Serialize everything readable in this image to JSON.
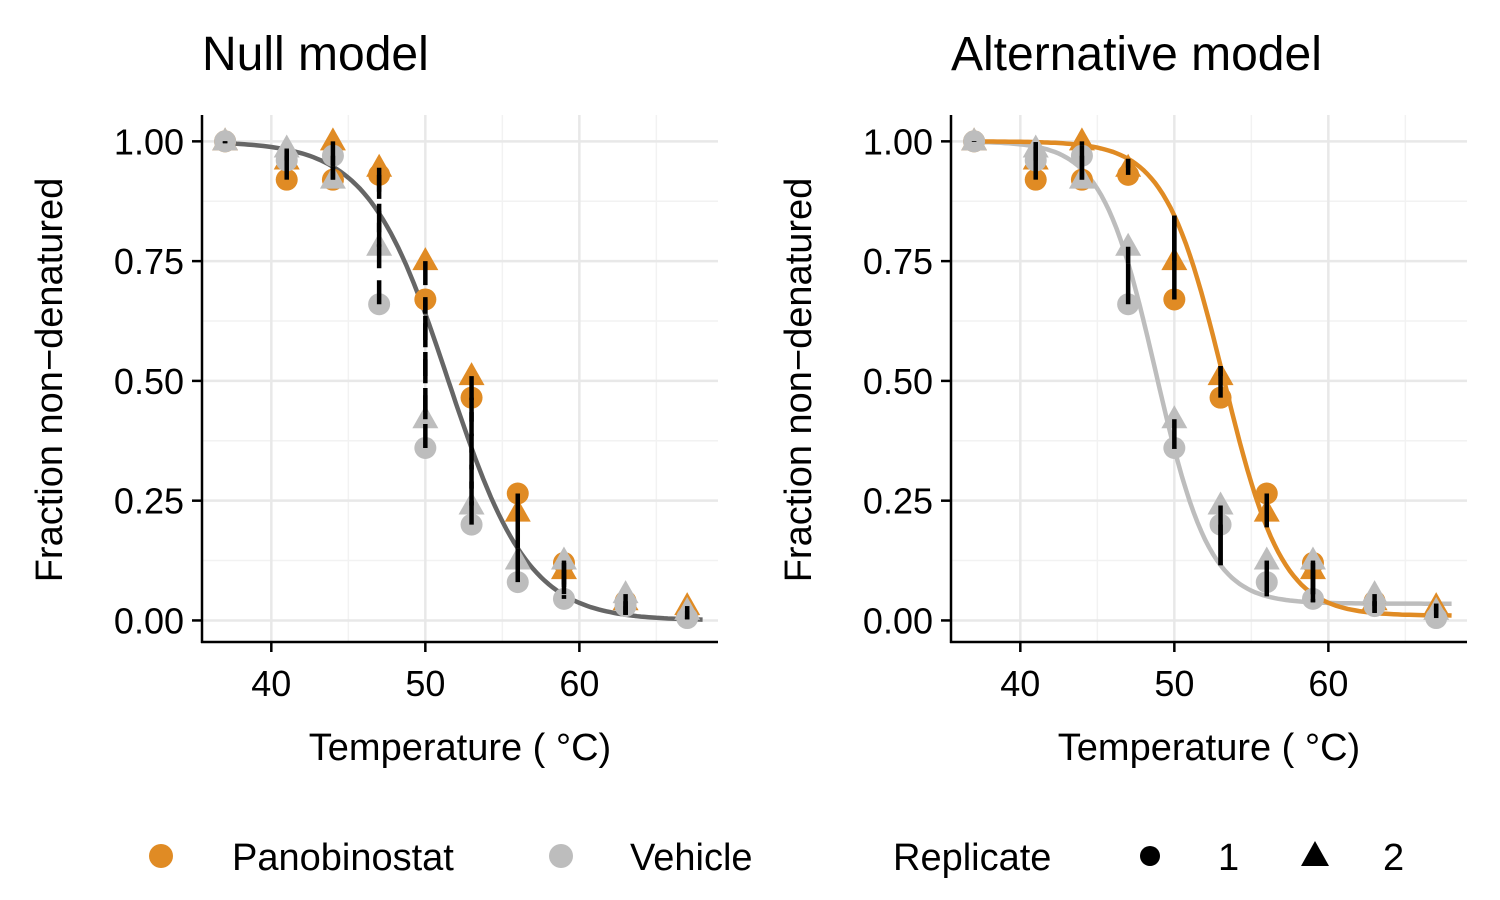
{
  "chart_data": [
    {
      "type": "scatter",
      "title": "Null model",
      "xlabel": "Temperature ( °C)",
      "ylabel": "Fraction non−denatured",
      "xlim": [
        35.5,
        69
      ],
      "ylim": [
        -0.045,
        1.055
      ],
      "x_ticks": [
        40,
        50,
        60
      ],
      "y_ticks": [
        0,
        0.25,
        0.5,
        0.75,
        1
      ],
      "x_tick_labels": [
        "40",
        "50",
        "60"
      ],
      "y_tick_labels": [
        "0.00",
        "0.25",
        "0.50",
        "0.75",
        "1.00"
      ],
      "grid": true,
      "fit_curves": [
        {
          "group": "pooled",
          "color": "#666666",
          "tm": 51.5,
          "slope": 2.6,
          "plateau": 0.0
        }
      ],
      "residuals_dashed": true
    },
    {
      "type": "scatter",
      "title": "Alternative model",
      "xlabel": "Temperature ( °C)",
      "ylabel": "Fraction non−denatured",
      "xlim": [
        35.5,
        69
      ],
      "ylim": [
        -0.045,
        1.055
      ],
      "x_ticks": [
        40,
        50,
        60
      ],
      "y_ticks": [
        0,
        0.25,
        0.5,
        0.75,
        1
      ],
      "x_tick_labels": [
        "40",
        "50",
        "60"
      ],
      "y_tick_labels": [
        "0.00",
        "0.25",
        "0.50",
        "0.75",
        "1.00"
      ],
      "grid": true,
      "fit_curves": [
        {
          "group": "Vehicle",
          "color": "#bdbdbd",
          "tm": 48.8,
          "slope": 1.75,
          "plateau": 0.035
        },
        {
          "group": "Panobinostat",
          "color": "#e08b24",
          "tm": 53.2,
          "slope": 1.9,
          "plateau": 0.01
        }
      ],
      "residuals_dashed": false
    }
  ],
  "shared_points": {
    "x": [
      37,
      41,
      44,
      47,
      50,
      53,
      56,
      59,
      63,
      67
    ],
    "series": [
      {
        "name": "Panobinostat",
        "color": "#e08b24",
        "replicate": "1",
        "values": [
          1.0,
          0.92,
          0.92,
          0.93,
          0.67,
          0.465,
          0.265,
          0.12,
          0.04,
          0.01
        ]
      },
      {
        "name": "Panobinostat",
        "color": "#e08b24",
        "replicate": "2",
        "values": [
          1.0,
          0.96,
          1.0,
          0.945,
          0.75,
          0.51,
          0.225,
          0.105,
          0.04,
          0.03
        ]
      },
      {
        "name": "Vehicle",
        "color": "#bdbdbd",
        "replicate": "1",
        "values": [
          1.0,
          0.96,
          0.97,
          0.66,
          0.36,
          0.2,
          0.08,
          0.045,
          0.03,
          0.005
        ]
      },
      {
        "name": "Vehicle",
        "color": "#bdbdbd",
        "replicate": "2",
        "values": [
          1.0,
          0.985,
          0.92,
          0.78,
          0.42,
          0.24,
          0.125,
          0.125,
          0.055,
          0.02
        ]
      }
    ]
  },
  "legend": {
    "placement": "bottom",
    "groups": [
      {
        "label": "Panobinostat",
        "color": "#e08b24",
        "shape": "circle"
      },
      {
        "label": "Vehicle",
        "color": "#bdbdbd",
        "shape": "circle"
      }
    ],
    "replicate_title": "Replicate",
    "replicates": [
      {
        "label": "1",
        "shape": "circle"
      },
      {
        "label": "2",
        "shape": "triangle"
      }
    ]
  }
}
